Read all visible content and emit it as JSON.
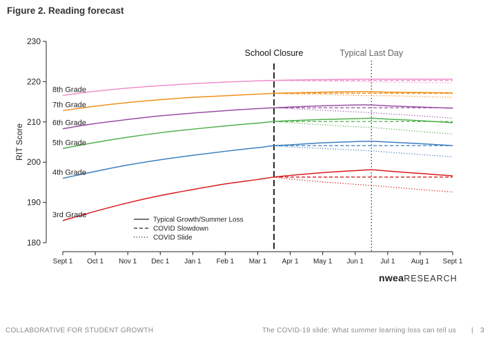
{
  "figure_title": "Figure 2. Reading forecast",
  "footer": {
    "left": "COLLABORATIVE FOR STUDENT GROWTH",
    "right": "The COVID-19 slide: What summer learning loss can tell us",
    "separator": "|",
    "page": "3"
  },
  "logo": {
    "brand": "nwea",
    "suffix": "RESEARCH"
  },
  "colors": {
    "3rd Grade": "#d7191c",
    "4th Grade": "#3a7ebf",
    "5th Grade": "#4daf4a",
    "6th Grade": "#984ea3",
    "7th Grade": "#f0901c",
    "8th Grade": "#ef8ecc",
    "axis": "#222222"
  },
  "chart_data": {
    "type": "line",
    "ylabel": "RIT Score",
    "xlabel": "",
    "ylim": [
      180,
      230
    ],
    "yticks": [
      180,
      190,
      200,
      210,
      220,
      230
    ],
    "x_ticks": [
      "Sept 1",
      "Oct 1",
      "Nov 1",
      "Dec 1",
      "Jan 1",
      "Feb 1",
      "Mar 1",
      "Apr 1",
      "May 1",
      "Jun 1",
      "Jul 1",
      "Aug 1",
      "Sept 1"
    ],
    "x_tick_index": [
      0,
      1,
      2,
      3,
      4,
      5,
      6,
      7,
      8,
      9,
      10,
      11,
      12
    ],
    "grid": false,
    "annotations": [
      {
        "label": "School Closure",
        "x": 6.5,
        "style": "dashed"
      },
      {
        "label": "Typical Last Day",
        "x": 9.5,
        "style": "dotted"
      }
    ],
    "legend": {
      "placement": "bottom-left",
      "entries": [
        {
          "label": "Typical Growth/Summer Loss",
          "style": "solid"
        },
        {
          "label": "COVID Slowdown",
          "style": "dashed"
        },
        {
          "label": "COVID Slide",
          "style": "dotted"
        }
      ]
    },
    "series": [
      {
        "name": "3rd Grade",
        "typical": {
          "x": [
            0,
            1,
            2,
            3,
            4,
            5,
            6,
            6.5,
            7,
            8,
            9,
            9.5,
            10,
            11,
            12
          ],
          "y": [
            185.5,
            187.8,
            189.9,
            191.7,
            193.2,
            194.6,
            195.7,
            196.3,
            196.7,
            197.4,
            197.9,
            198.1,
            197.8,
            197.2,
            196.6
          ]
        },
        "slowdown": {
          "x": [
            6.5,
            12
          ],
          "y": [
            196.3,
            196.3
          ]
        },
        "slide": {
          "x": [
            6.5,
            7,
            8,
            9,
            9.5,
            10,
            11,
            12
          ],
          "y": [
            196.3,
            195.8,
            195.1,
            194.5,
            194.2,
            193.9,
            193.2,
            192.6
          ]
        }
      },
      {
        "name": "4th Grade",
        "typical": {
          "x": [
            0,
            1,
            2,
            3,
            4,
            5,
            6,
            6.5,
            7,
            8,
            9,
            9.5,
            10,
            11,
            12
          ],
          "y": [
            196.0,
            197.7,
            199.3,
            200.6,
            201.7,
            202.7,
            203.6,
            204.1,
            204.3,
            204.8,
            205.1,
            205.2,
            205.0,
            204.6,
            204.1
          ]
        },
        "slowdown": {
          "x": [
            6.5,
            12
          ],
          "y": [
            204.1,
            204.1
          ]
        },
        "slide": {
          "x": [
            6.5,
            7,
            8,
            9,
            9.5,
            10,
            11,
            12
          ],
          "y": [
            204.1,
            203.8,
            203.4,
            203.0,
            202.8,
            202.5,
            201.9,
            201.3
          ]
        }
      },
      {
        "name": "5th Grade",
        "typical": {
          "x": [
            0,
            1,
            2,
            3,
            4,
            5,
            6,
            6.5,
            7,
            8,
            9,
            9.5,
            10,
            11,
            12
          ],
          "y": [
            203.4,
            204.9,
            206.2,
            207.3,
            208.2,
            209.0,
            209.7,
            210.1,
            210.3,
            210.6,
            210.8,
            210.9,
            210.7,
            210.3,
            209.8
          ]
        },
        "slowdown": {
          "x": [
            6.5,
            12
          ],
          "y": [
            210.1,
            210.1
          ]
        },
        "slide": {
          "x": [
            6.5,
            7,
            8,
            9,
            9.5,
            10,
            11,
            12
          ],
          "y": [
            210.1,
            209.8,
            209.3,
            208.8,
            208.6,
            208.3,
            207.6,
            207.0
          ]
        }
      },
      {
        "name": "6th Grade",
        "typical": {
          "x": [
            0,
            1,
            2,
            3,
            4,
            5,
            6,
            6.5,
            7,
            8,
            9,
            9.5,
            10,
            11,
            12
          ],
          "y": [
            208.3,
            209.6,
            210.6,
            211.5,
            212.2,
            212.8,
            213.3,
            213.5,
            213.7,
            214.0,
            214.2,
            214.2,
            214.0,
            213.7,
            213.4
          ]
        },
        "slowdown": {
          "x": [
            6.5,
            12
          ],
          "y": [
            213.5,
            213.5
          ]
        },
        "slide": {
          "x": [
            6.5,
            7,
            8,
            9,
            9.5,
            10,
            11,
            12
          ],
          "y": [
            213.5,
            213.3,
            212.9,
            212.5,
            212.3,
            212.0,
            211.5,
            210.9
          ]
        }
      },
      {
        "name": "7th Grade",
        "typical": {
          "x": [
            0,
            1,
            2,
            3,
            4,
            5,
            6,
            6.5,
            7,
            8,
            9,
            9.5,
            10,
            11,
            12
          ],
          "y": [
            212.8,
            213.9,
            214.8,
            215.5,
            216.1,
            216.5,
            216.9,
            217.1,
            217.2,
            217.4,
            217.5,
            217.5,
            217.4,
            217.3,
            217.2
          ]
        },
        "slowdown": {
          "x": [
            6.5,
            12
          ],
          "y": [
            217.1,
            217.1
          ]
        },
        "slide": {
          "x": [
            6.5,
            7,
            8,
            9,
            9.5,
            10,
            11,
            12
          ],
          "y": [
            217.1,
            216.9,
            216.8,
            216.6,
            216.5,
            216.5,
            216.3,
            216.1
          ]
        }
      },
      {
        "name": "8th Grade",
        "typical": {
          "x": [
            0,
            1,
            2,
            3,
            4,
            5,
            6,
            6.5,
            7,
            8,
            9,
            9.5,
            10,
            11,
            12
          ],
          "y": [
            216.6,
            217.6,
            218.4,
            219.0,
            219.5,
            219.9,
            220.2,
            220.3,
            220.4,
            220.5,
            220.6,
            220.6,
            220.6,
            220.6,
            220.6
          ]
        },
        "slowdown": {
          "x": [
            6.5,
            12
          ],
          "y": [
            220.3,
            220.3
          ]
        },
        "slide": {
          "x": [
            6.5,
            7,
            8,
            9,
            9.5,
            10,
            11,
            12
          ],
          "y": [
            220.3,
            220.2,
            220.1,
            220.0,
            219.9,
            219.9,
            219.8,
            219.7
          ]
        }
      }
    ]
  }
}
